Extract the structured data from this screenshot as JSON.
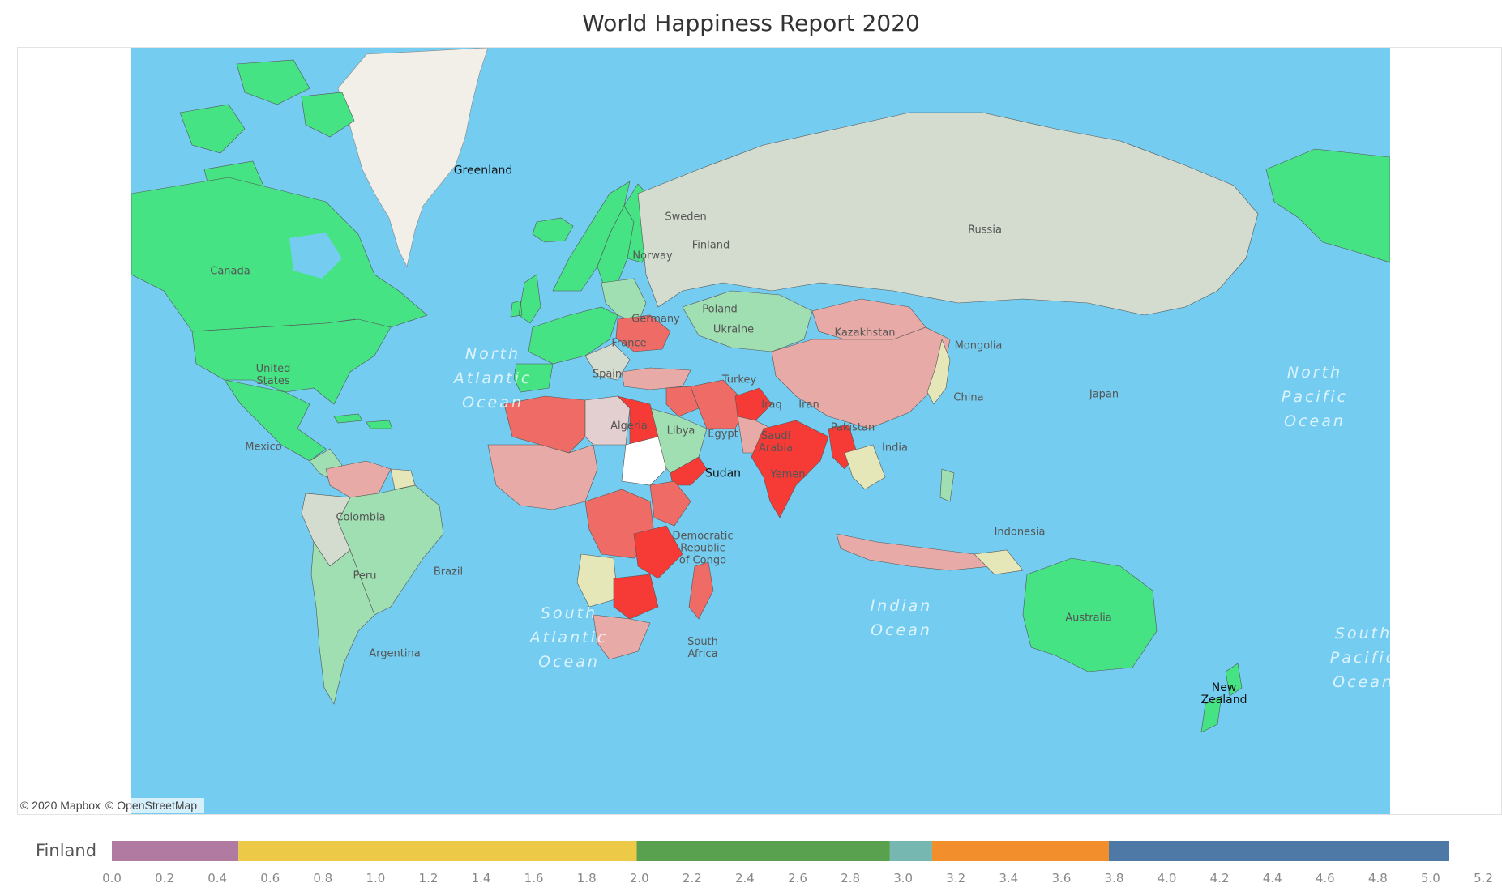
{
  "title": "World Happiness Report 2020",
  "attribution": {
    "mapbox": "© 2020 Mapbox",
    "osm": "© OpenStreetMap"
  },
  "colors": {
    "ocean": "#74cdf0",
    "very_happy": "#45e384",
    "happy": "#9fdfb2",
    "neutral": "#d4dccf",
    "mid": "#e6e7b8",
    "unhappy": "#e8aaa6",
    "very_unhappy": "#ee6b66",
    "least_happy": "#f63b36",
    "ice": "#f2efe8"
  },
  "countries": {
    "greenland": "Greenland",
    "canada": "Canada",
    "united_states": "United\nStates",
    "mexico": "Mexico",
    "colombia": "Colombia",
    "peru": "Peru",
    "brazil": "Brazil",
    "argentina": "Argentina",
    "sweden": "Sweden",
    "norway": "Norway",
    "finland": "Finland",
    "poland": "Poland",
    "germany": "Germany",
    "france": "France",
    "spain": "Spain",
    "ukraine": "Ukraine",
    "turkey": "Turkey",
    "algeria": "Algeria",
    "libya": "Libya",
    "egypt": "Egypt",
    "sudan": "Sudan",
    "saudi_arabia": "Saudi\nArabia",
    "yemen": "Yemen",
    "iraq": "Iraq",
    "iran": "Iran",
    "pakistan": "Pakistan",
    "india": "India",
    "russia": "Russia",
    "kazakhstan": "Kazakhstan",
    "mongolia": "Mongolia",
    "china": "China",
    "japan": "Japan",
    "indonesia": "Indonesia",
    "drc": "Democratic\nRepublic\nof Congo",
    "south_africa": "South\nAfrica",
    "australia": "Australia",
    "new_zealand": "New\nZealand"
  },
  "oceans": {
    "north_atlantic": "North\nAtlantic\nOcean",
    "south_atlantic": "South\nAtlantic\nOcean",
    "indian": "Indian\nOcean",
    "north_pacific": "North\nPacific\nOcean",
    "south_pacific": "South\nPacific\nOcean"
  },
  "legend": {
    "label": "Finland",
    "axis_min": 0.0,
    "axis_max": 5.2,
    "ticks": [
      "0.0",
      "0.2",
      "0.4",
      "0.6",
      "0.8",
      "1.0",
      "1.2",
      "1.4",
      "1.6",
      "1.8",
      "2.0",
      "2.2",
      "2.4",
      "2.6",
      "2.8",
      "3.0",
      "3.2",
      "3.4",
      "3.6",
      "3.8",
      "4.0",
      "4.2",
      "4.4",
      "4.6",
      "4.8",
      "5.0",
      "5.2"
    ],
    "segments": [
      {
        "start": 0.0,
        "end": 0.48,
        "color": "#b07aa1"
      },
      {
        "start": 0.48,
        "end": 1.99,
        "color": "#edc948"
      },
      {
        "start": 1.99,
        "end": 2.95,
        "color": "#59a14f"
      },
      {
        "start": 2.95,
        "end": 3.11,
        "color": "#76b7b2"
      },
      {
        "start": 3.11,
        "end": 3.78,
        "color": "#f28e2b"
      },
      {
        "start": 3.78,
        "end": 5.07,
        "color": "#4e79a7"
      }
    ]
  }
}
